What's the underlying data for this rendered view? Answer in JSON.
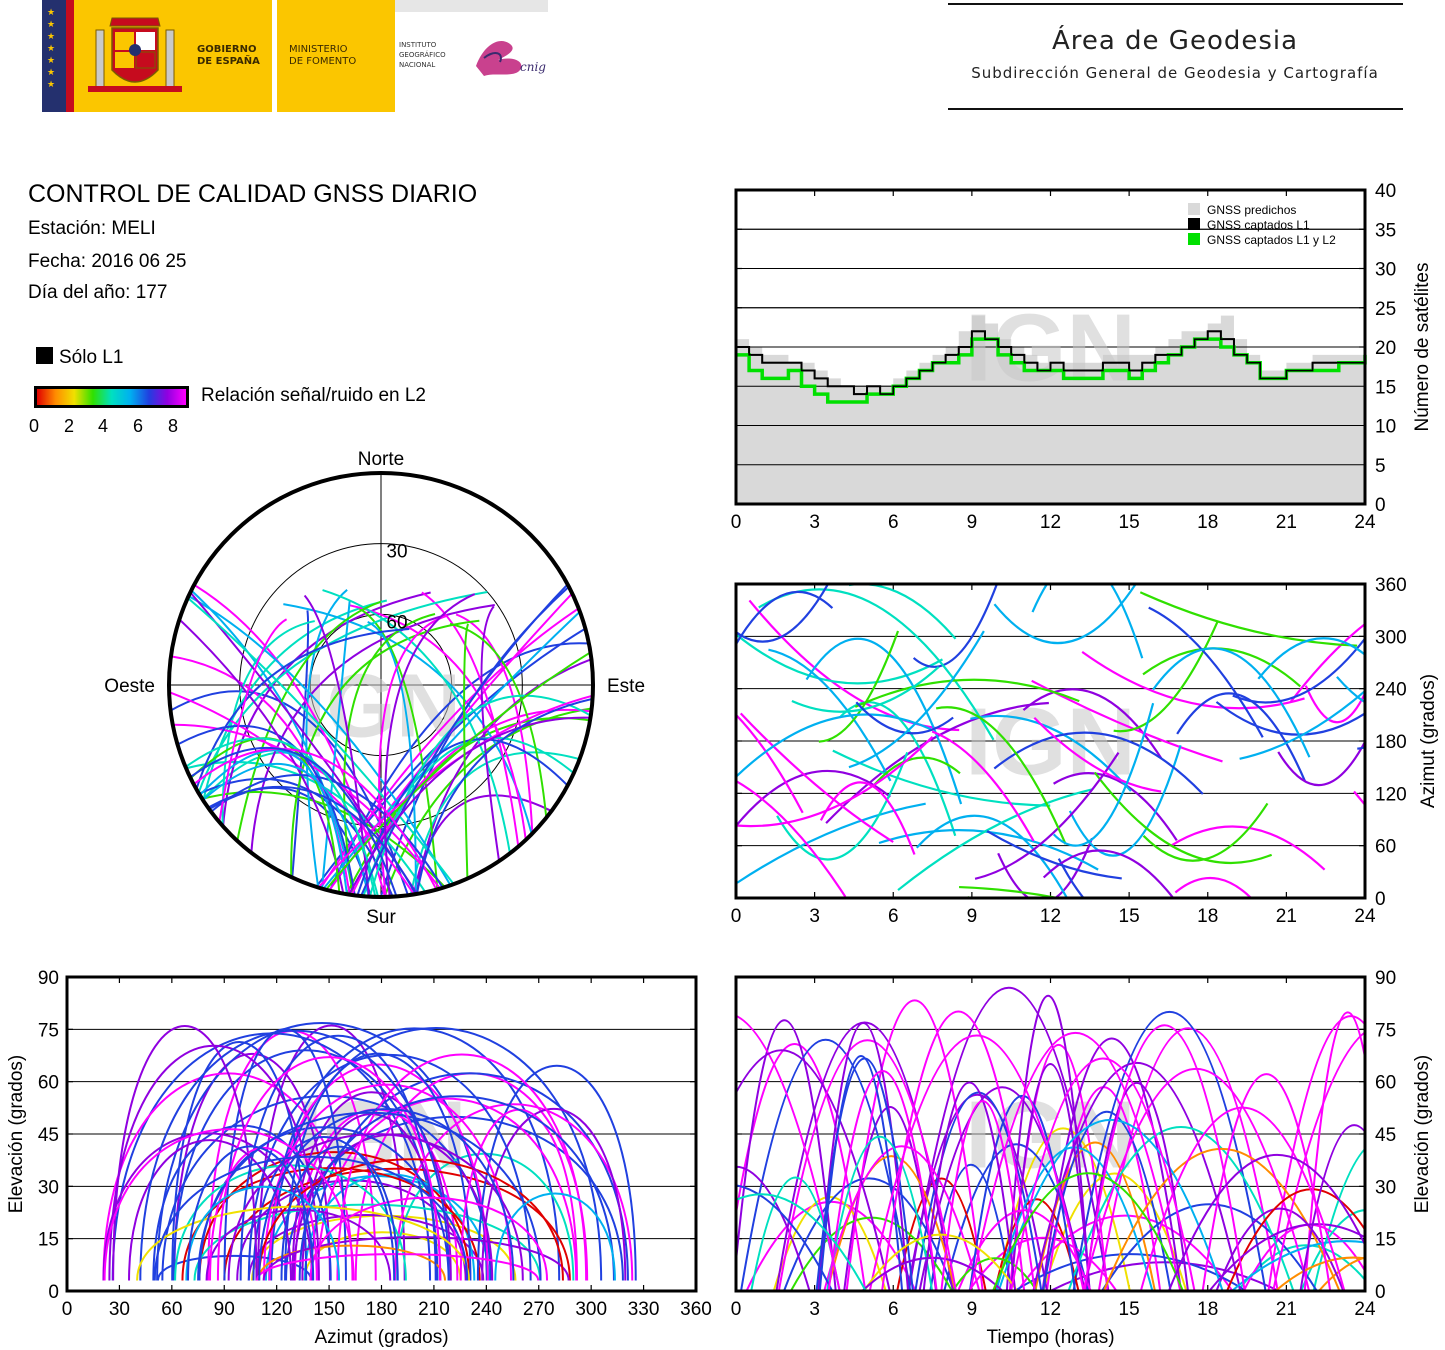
{
  "header": {
    "gov_line1": "GOBIERNO",
    "gov_line2": "DE ESPAÑA",
    "min_line1": "MINISTERIO",
    "min_line2": "DE FOMENTO",
    "ign_line1": "INSTITUTO",
    "ign_line2": "GEOGRÁFICO",
    "ign_line3": "NACIONAL",
    "cnig": "cnig",
    "area_title": "Área de Geodesia",
    "area_subtitle": "Subdirección General de Geodesia y Cartografía"
  },
  "report": {
    "title": "CONTROL DE CALIDAD GNSS DIARIO",
    "station": "Estación: MELI",
    "date": "Fecha: 2016 06 25",
    "doy": "Día del año: 177"
  },
  "legend": {
    "l1_only": "Sólo L1",
    "snr_label": "Relación señal/ruido en L2",
    "snr_ticks": [
      "0",
      "2",
      "4",
      "6",
      "8"
    ],
    "snr_colors": [
      "#e00000",
      "#ff8c00",
      "#f0e000",
      "#30e000",
      "#00e0c0",
      "#00b0f0",
      "#2040e0",
      "#9000e0",
      "#ff00ff"
    ]
  },
  "watermark": "IGN",
  "chart_data": [
    {
      "type": "line",
      "id": "satellite-count",
      "x_range": [
        0,
        24
      ],
      "xticks": [
        0,
        3,
        6,
        9,
        12,
        15,
        18,
        21,
        24
      ],
      "ylim": [
        0,
        40
      ],
      "yticks": [
        0,
        5,
        10,
        15,
        20,
        25,
        30,
        35,
        40
      ],
      "ylabel": "Número de satélites",
      "grid": true,
      "legend_position": "top-right",
      "series": [
        {
          "name": "GNSS predichos",
          "color": "#d9d9d9",
          "style": "filled-area",
          "x": [
            0,
            0.5,
            1,
            1.5,
            2,
            2.5,
            3,
            3.5,
            4,
            4.5,
            5,
            5.5,
            6,
            6.5,
            7,
            7.5,
            8,
            8.5,
            9,
            9.5,
            10,
            10.5,
            11,
            11.5,
            12,
            12.5,
            13,
            13.5,
            14,
            14.5,
            15,
            15.5,
            16,
            16.5,
            17,
            17.5,
            18,
            18.5,
            19,
            19.5,
            20,
            20.5,
            21,
            21.5,
            22,
            22.5,
            23,
            23.5,
            24
          ],
          "values": [
            21,
            20,
            19,
            19,
            18,
            18,
            17,
            16,
            15,
            15,
            15,
            15,
            16,
            17,
            18,
            19,
            20,
            22,
            24,
            23,
            21,
            20,
            19,
            18,
            18,
            18,
            18,
            18,
            19,
            19,
            19,
            19,
            20,
            21,
            22,
            22,
            23,
            24,
            21,
            19,
            17,
            17,
            18,
            18,
            19,
            19,
            19,
            19,
            20
          ]
        },
        {
          "name": "GNSS captados L1",
          "color": "#000000",
          "style": "step",
          "x": [
            0,
            0.5,
            1,
            1.5,
            2,
            2.5,
            3,
            3.5,
            4,
            4.5,
            5,
            5.5,
            6,
            6.5,
            7,
            7.5,
            8,
            8.5,
            9,
            9.5,
            10,
            10.5,
            11,
            11.5,
            12,
            12.5,
            13,
            13.5,
            14,
            14.5,
            15,
            15.5,
            16,
            16.5,
            17,
            17.5,
            18,
            18.5,
            19,
            19.5,
            20,
            20.5,
            21,
            21.5,
            22,
            22.5,
            23,
            23.5,
            24
          ],
          "values": [
            20,
            19,
            18,
            18,
            18,
            17,
            16,
            15,
            15,
            14,
            15,
            14,
            15,
            16,
            17,
            18,
            19,
            20,
            22,
            21,
            20,
            19,
            18,
            17,
            18,
            17,
            17,
            17,
            18,
            18,
            17,
            18,
            19,
            19,
            20,
            21,
            22,
            21,
            19,
            18,
            16,
            16,
            17,
            17,
            18,
            18,
            18,
            18,
            19
          ]
        },
        {
          "name": "GNSS captados L1 y L2",
          "color": "#00e000",
          "style": "step",
          "x": [
            0,
            0.5,
            1,
            1.5,
            2,
            2.5,
            3,
            3.5,
            4,
            4.5,
            5,
            5.5,
            6,
            6.5,
            7,
            7.5,
            8,
            8.5,
            9,
            9.5,
            10,
            10.5,
            11,
            11.5,
            12,
            12.5,
            13,
            13.5,
            14,
            14.5,
            15,
            15.5,
            16,
            16.5,
            17,
            17.5,
            18,
            18.5,
            19,
            19.5,
            20,
            20.5,
            21,
            21.5,
            22,
            22.5,
            23,
            23.5,
            24
          ],
          "values": [
            19,
            17,
            16,
            16,
            17,
            15,
            14,
            13,
            13,
            13,
            14,
            14,
            15,
            16,
            17,
            18,
            18,
            19,
            21,
            21,
            19,
            18,
            17,
            17,
            17,
            16,
            16,
            16,
            17,
            17,
            16,
            17,
            18,
            19,
            20,
            21,
            21,
            20,
            19,
            18,
            16,
            16,
            17,
            17,
            17,
            17,
            18,
            18,
            19
          ]
        }
      ]
    },
    {
      "type": "scatter",
      "id": "azimuth-vs-time",
      "x_range": [
        0,
        24
      ],
      "xticks": [
        0,
        3,
        6,
        9,
        12,
        15,
        18,
        21,
        24
      ],
      "ylim": [
        0,
        360
      ],
      "yticks": [
        0,
        60,
        120,
        180,
        240,
        300,
        360
      ],
      "ylabel": "Azimut (grados)",
      "grid": true
    },
    {
      "type": "scatter",
      "id": "elevation-vs-azimuth",
      "x_range": [
        0,
        360
      ],
      "xticks": [
        0,
        30,
        60,
        90,
        120,
        150,
        180,
        210,
        240,
        270,
        300,
        330,
        360
      ],
      "ylim": [
        0,
        90
      ],
      "yticks": [
        0,
        15,
        30,
        45,
        60,
        75,
        90
      ],
      "xlabel": "Azimut (grados)",
      "ylabel": "Elevación (grados)",
      "grid": true
    },
    {
      "type": "scatter",
      "id": "elevation-vs-time",
      "x_range": [
        0,
        24
      ],
      "xticks": [
        0,
        3,
        6,
        9,
        12,
        15,
        18,
        21,
        24
      ],
      "ylim": [
        0,
        90
      ],
      "yticks": [
        0,
        15,
        30,
        45,
        60,
        75,
        90
      ],
      "xlabel": "Tiempo (horas)",
      "ylabel": "Elevación (grados)",
      "grid": true
    },
    {
      "type": "scatter",
      "id": "skyplot",
      "directions": {
        "north": "Norte",
        "south": "Sur",
        "east": "Este",
        "west": "Oeste"
      },
      "rings": [
        "30",
        "60"
      ]
    }
  ]
}
